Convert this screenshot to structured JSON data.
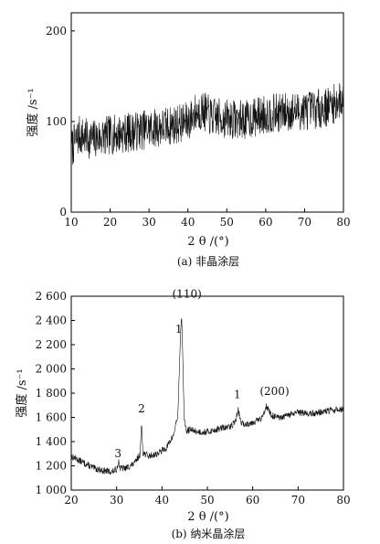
{
  "chart_data": [
    {
      "type": "line",
      "caption": "(a) 非晶涂层",
      "xlabel": "2 θ /(°)",
      "ylabel": "强度 /s⁻¹",
      "xlim": [
        10,
        80
      ],
      "ylim": [
        0,
        220
      ],
      "xticks": [
        10,
        20,
        30,
        40,
        50,
        60,
        70,
        80
      ],
      "yticks": [
        0,
        100,
        200
      ],
      "ytick_labels": [
        "0",
        "100",
        "200"
      ],
      "series": [
        {
          "x": [
            10,
            12,
            15,
            20,
            25,
            30,
            35,
            40,
            42,
            44,
            46,
            50,
            55,
            60,
            65,
            70,
            75,
            78,
            80
          ],
          "y": [
            70,
            85,
            80,
            85,
            88,
            92,
            95,
            100,
            110,
            112,
            105,
            103,
            102,
            108,
            110,
            112,
            115,
            120,
            125
          ]
        }
      ],
      "noise_amplitude": 22,
      "annotations": []
    },
    {
      "type": "line",
      "caption": "(b) 纳米晶涂层",
      "xlabel": "2 θ /(°)",
      "ylabel": "强度 /s⁻¹",
      "xlim": [
        20,
        80
      ],
      "ylim": [
        1000,
        2600
      ],
      "xticks": [
        20,
        30,
        40,
        50,
        60,
        70,
        80
      ],
      "yticks": [
        1000,
        1200,
        1400,
        1600,
        1800,
        2000,
        2200,
        2400,
        2600
      ],
      "ytick_labels": [
        "1 000",
        "1 200",
        "1 400",
        "1 600",
        "1 800",
        "2 000",
        "2 200",
        "2 400",
        "2 600"
      ],
      "series": [
        {
          "x": [
            20,
            22,
            25,
            27,
            29,
            30,
            30.4,
            30.8,
            32,
            34,
            35.2,
            35.5,
            35.8,
            37,
            39,
            41,
            42.5,
            43.5,
            44.0,
            44.3,
            44.6,
            44.9,
            45.3,
            46,
            48,
            50,
            53,
            55,
            56.2,
            56.8,
            57.4,
            58,
            60,
            62,
            63,
            64,
            66,
            68,
            70,
            73,
            76,
            80
          ],
          "y": [
            1280,
            1240,
            1180,
            1160,
            1150,
            1170,
            1240,
            1180,
            1180,
            1220,
            1300,
            1560,
            1310,
            1280,
            1300,
            1350,
            1450,
            1620,
            2200,
            2460,
            2050,
            1600,
            1480,
            1500,
            1480,
            1480,
            1510,
            1520,
            1570,
            1660,
            1560,
            1540,
            1560,
            1590,
            1700,
            1620,
            1590,
            1620,
            1640,
            1630,
            1650,
            1670
          ]
        }
      ],
      "noise_amplitude": 28,
      "annotations": [
        {
          "text": "3",
          "x": 30.3,
          "y": 1270
        },
        {
          "text": "2",
          "x": 35.5,
          "y": 1640
        },
        {
          "text": "1",
          "x": 43.7,
          "y": 2300
        },
        {
          "text": "(110)",
          "x": 45.5,
          "y": 2590
        },
        {
          "text": "1",
          "x": 56.6,
          "y": 1760
        },
        {
          "text": "(200)",
          "x": 64.8,
          "y": 1785
        }
      ]
    }
  ]
}
